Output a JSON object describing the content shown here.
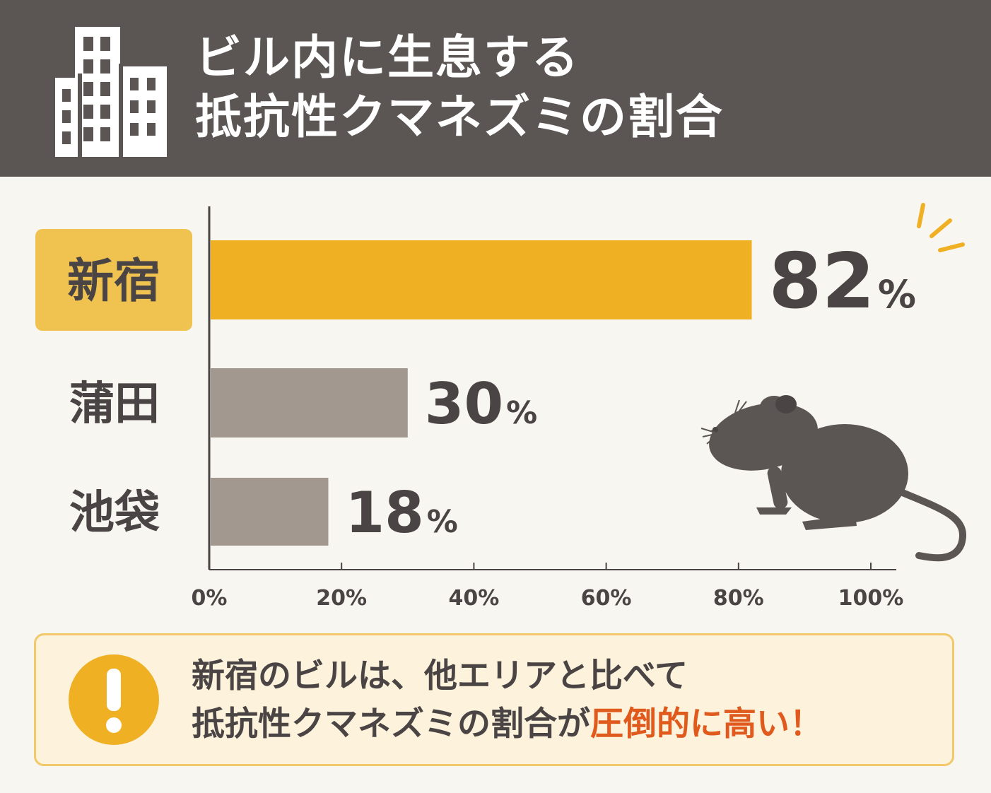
{
  "header": {
    "title_line1": "ビル内に生息する",
    "title_line2": "抵抗性クマネズミの割合",
    "icon": "building-icon"
  },
  "chart_data": {
    "type": "bar",
    "orientation": "horizontal",
    "categories": [
      "新宿",
      "蒲田",
      "池袋"
    ],
    "values": [
      82,
      30,
      18
    ],
    "value_labels": [
      "82",
      "30",
      "18"
    ],
    "value_unit": "%",
    "highlight_category": "新宿",
    "xlim": [
      0,
      100
    ],
    "xticks": [
      "0%",
      "20%",
      "40%",
      "60%",
      "80%",
      "100%"
    ],
    "colors": {
      "highlight": "#efb023",
      "default": "#a2988f",
      "highlight_label_bg": "#f0c24f"
    },
    "decoration": "rat-silhouette"
  },
  "alert": {
    "icon": "exclamation-icon",
    "line1": "新宿のビルは、他エリアと比べて",
    "line2_normal": "抵抗性クマネズミの割合が",
    "line2_highlight": "圧倒的に高い！",
    "highlight_color": "#e05a1e"
  }
}
